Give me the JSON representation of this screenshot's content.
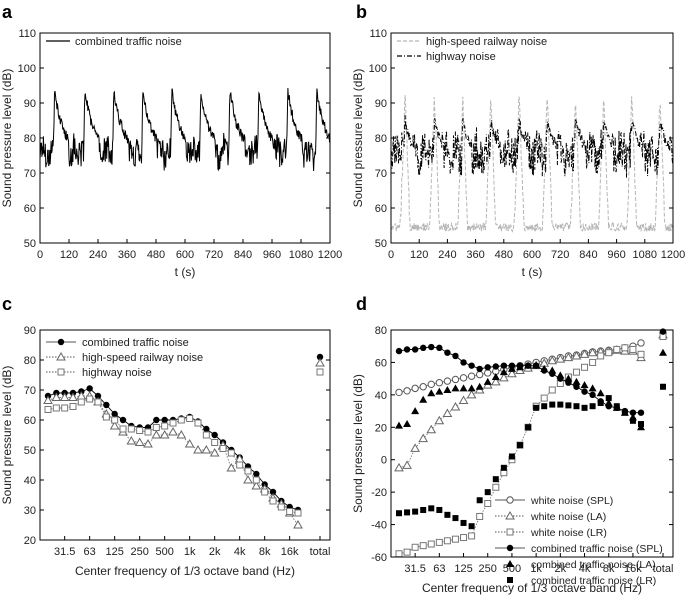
{
  "panel_letters": [
    "a",
    "b",
    "c",
    "d"
  ],
  "chart_data": [
    {
      "panel": "a",
      "type": "line",
      "xlabel": "t (s)",
      "ylabel": "Sound pressure level (dB)",
      "xlim": [
        0,
        1200
      ],
      "ylim": [
        50,
        110
      ],
      "xticks": [
        0,
        120,
        240,
        360,
        480,
        600,
        720,
        840,
        960,
        1080,
        1200
      ],
      "yticks": [
        50,
        60,
        70,
        80,
        90,
        100,
        110
      ],
      "legend": [
        "combined traffic noise"
      ],
      "series": [
        {
          "name": "combined traffic noise",
          "style": "solid",
          "color": "#000000",
          "model": {
            "base": 76,
            "noise_amp": 4,
            "floor": 68,
            "peak_times": [
              60,
              185,
              305,
              425,
              545,
              665,
              785,
              905,
              1025,
              1145
            ],
            "peak_height": 94,
            "decay_s": 60
          }
        }
      ]
    },
    {
      "panel": "b",
      "type": "line",
      "xlabel": "t (s)",
      "ylabel": "Sound pressure level (dB)",
      "xlim": [
        0,
        1200
      ],
      "ylim": [
        50,
        110
      ],
      "xticks": [
        0,
        120,
        240,
        360,
        480,
        600,
        720,
        840,
        960,
        1080,
        1200
      ],
      "yticks": [
        50,
        60,
        70,
        80,
        90,
        100,
        110
      ],
      "legend": [
        "high-speed railway noise",
        "highway noise"
      ],
      "series": [
        {
          "name": "high-speed railway noise",
          "style": "dashed",
          "color": "#b5b5b5",
          "model": {
            "base": 54.5,
            "noise_amp": 1.2,
            "peak_times": [
              60,
              185,
              305,
              425,
              545,
              665,
              785,
              905,
              1025,
              1145
            ],
            "peak_height": 94,
            "width_s": 22
          }
        },
        {
          "name": "highway noise",
          "style": "dashdot",
          "color": "#000000",
          "model": {
            "base": 76,
            "noise_amp": 6,
            "floor": 68,
            "bump_times": [
              60,
              185,
              305,
              425,
              545,
              665,
              785,
              905,
              1025,
              1145
            ],
            "bump_height": 85,
            "decay_s": 40
          }
        }
      ]
    },
    {
      "panel": "c",
      "type": "line",
      "xlabel": "Center frequency of 1/3 octave band (Hz)",
      "ylabel": "Sound pressure level (dB)",
      "ylim": [
        20,
        90
      ],
      "yticks": [
        20,
        30,
        40,
        50,
        60,
        70,
        80,
        90
      ],
      "categories": [
        "20",
        "25",
        "31.5",
        "40",
        "50",
        "63",
        "80",
        "100",
        "125",
        "160",
        "200",
        "250",
        "315",
        "400",
        "500",
        "630",
        "800",
        "1k",
        "1.25k",
        "1.6k",
        "2k",
        "2.5k",
        "3.15k",
        "4k",
        "5k",
        "6.3k",
        "8k",
        "10k",
        "12.5k",
        "16k",
        "20k"
      ],
      "tick_labels": [
        "31.5",
        "63",
        "125",
        "250",
        "500",
        "1k",
        "2k",
        "4k",
        "8k",
        "16k",
        "total"
      ],
      "legend": [
        "combined traffic noise",
        "high-speed railway noise",
        "highway noise"
      ],
      "series": [
        {
          "name": "combined traffic noise",
          "marker": "filled-circle",
          "line": "solid",
          "values": [
            68,
            69,
            69,
            69,
            69.5,
            70.5,
            68,
            65,
            62,
            60,
            58,
            57.5,
            57.5,
            60,
            60,
            60,
            60.5,
            61,
            59.5,
            57,
            55,
            52.5,
            50,
            47.5,
            44.5,
            42,
            38.5,
            36,
            33,
            31,
            30
          ],
          "total": 81
        },
        {
          "name": "high-speed railway noise",
          "marker": "open-triangle",
          "line": "dotted",
          "values": [
            66.5,
            67.5,
            67.5,
            67.5,
            68,
            68,
            66,
            62,
            58,
            56,
            53,
            52.5,
            52,
            55,
            55,
            56,
            55,
            52,
            50,
            50,
            49,
            51.5,
            44,
            47,
            40,
            38,
            37,
            34,
            32,
            29,
            25
          ],
          "total": 79
        },
        {
          "name": "highway noise",
          "marker": "open-square",
          "line": "dotted",
          "values": [
            63.5,
            64,
            64,
            64.5,
            66,
            67,
            66,
            61,
            60,
            57,
            57,
            56.5,
            56,
            57.5,
            58,
            59,
            60,
            60.5,
            59,
            55,
            52.5,
            50.5,
            49,
            45,
            43,
            40,
            36,
            33,
            31,
            29.5,
            29
          ],
          "total": 76
        }
      ]
    },
    {
      "panel": "d",
      "type": "line",
      "xlabel": "Center frequency of 1/3 octave band (Hz)",
      "ylabel": "Sound pressure level (dB)",
      "ylim": [
        -60,
        80
      ],
      "yticks": [
        -60,
        -40,
        -20,
        0,
        20,
        40,
        60,
        80
      ],
      "categories": [
        "20",
        "25",
        "31.5",
        "40",
        "50",
        "63",
        "80",
        "100",
        "125",
        "160",
        "200",
        "250",
        "315",
        "400",
        "500",
        "630",
        "800",
        "1k",
        "1.25k",
        "1.6k",
        "2k",
        "2.5k",
        "3.15k",
        "4k",
        "5k",
        "6.3k",
        "8k",
        "10k",
        "12.5k",
        "16k",
        "20k"
      ],
      "tick_labels": [
        "31.5",
        "63",
        "125",
        "250",
        "500",
        "1k",
        "2k",
        "4k",
        "8k",
        "16k",
        "total"
      ],
      "legend": [
        "white noise (SPL)",
        "white noise (LA)",
        "white noise (LR)",
        "combined traffic noise (SPL)",
        "combined traffic noise (LA)",
        "combined traffic noise (LR)"
      ],
      "series": [
        {
          "name": "white noise (SPL)",
          "marker": "open-circle",
          "line": "solid",
          "values": [
            41.5,
            42.5,
            44,
            45,
            46.5,
            47.5,
            48.5,
            49.5,
            50.5,
            51.5,
            52.5,
            53.5,
            54.5,
            55.5,
            57,
            58,
            59,
            60,
            61,
            62,
            63,
            64,
            64.5,
            65.5,
            66.5,
            67,
            67.5,
            68,
            69,
            70,
            72
          ],
          "total": 78
        },
        {
          "name": "white noise (LA)",
          "marker": "open-triangle",
          "line": "dotted",
          "values": [
            -5,
            -3.5,
            7,
            13,
            18.5,
            24,
            28.5,
            32.5,
            36.5,
            40,
            43,
            46,
            48,
            50.5,
            53,
            55,
            56.5,
            58,
            59.5,
            61,
            62,
            63,
            64,
            65,
            66,
            66.5,
            67,
            67.5,
            67,
            67,
            63
          ],
          "total": 77
        },
        {
          "name": "white noise (LR)",
          "marker": "open-square",
          "line": "dotted",
          "values": [
            -58,
            -57,
            -54,
            -53,
            -52,
            -51,
            -50,
            -49,
            -48,
            -47,
            -35,
            -27,
            -17,
            -8,
            0,
            9,
            20,
            33,
            38,
            43,
            47,
            51,
            54,
            57,
            60,
            64,
            66,
            68,
            69,
            68,
            65
          ],
          "total": 76
        },
        {
          "name": "combined traffic noise (SPL)",
          "marker": "filled-circle",
          "line": "solid",
          "values": [
            67,
            68,
            68,
            69,
            69.5,
            69,
            66,
            64,
            60,
            58,
            56,
            57,
            57.5,
            58,
            58,
            58,
            58,
            58,
            55,
            53,
            50,
            47.5,
            45,
            42,
            40,
            36,
            33,
            32,
            30,
            29,
            29
          ],
          "total": 79
        },
        {
          "name": "combined traffic noise (LA)",
          "marker": "filled-triangle",
          "line": "none",
          "values": [
            21,
            22,
            30,
            37,
            41,
            42,
            43,
            44,
            44,
            44,
            45,
            48,
            51,
            54,
            56,
            57,
            58,
            58,
            56,
            55,
            52,
            50,
            48,
            46,
            44,
            41,
            35,
            32,
            29,
            26,
            20
          ],
          "total": 66
        },
        {
          "name": "combined traffic noise (LR)",
          "marker": "filled-square",
          "line": "none",
          "values": [
            -33,
            -32.5,
            -32,
            -31,
            -30,
            -31,
            -34,
            -36,
            -39,
            -41,
            -25,
            -20,
            -12,
            -5,
            2,
            9,
            20,
            32,
            33,
            34,
            34,
            33.5,
            33,
            32,
            33,
            35,
            38,
            33,
            29,
            24,
            22
          ],
          "total": 45
        }
      ]
    }
  ]
}
